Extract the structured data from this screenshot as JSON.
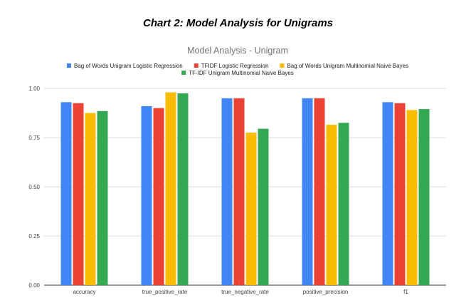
{
  "heading": "Chart 2: Model Analysis for Unigrams",
  "chart_data": {
    "type": "bar",
    "title": "Model Analysis - Unigram",
    "xlabel": "",
    "ylabel": "",
    "categories": [
      "accuracy",
      "true_positive_rate",
      "true_negative_rate",
      "positive_precision",
      "f1"
    ],
    "series": [
      {
        "name": "Bag of Words Unigram Logistic Regression",
        "color": "#4285F4",
        "values": [
          0.93,
          0.91,
          0.95,
          0.95,
          0.93
        ]
      },
      {
        "name": "TFIDF Logistic Regression",
        "color": "#EA4335",
        "values": [
          0.925,
          0.9,
          0.95,
          0.95,
          0.925
        ]
      },
      {
        "name": "Bag of Words Unigram Multinomial Naive Bayes",
        "color": "#FBBC04",
        "values": [
          0.875,
          0.98,
          0.775,
          0.815,
          0.89
        ]
      },
      {
        "name": "TF-IDF Unigram  Multinomial Naive Bayes",
        "color": "#34A853",
        "values": [
          0.885,
          0.975,
          0.795,
          0.825,
          0.895
        ]
      }
    ],
    "ylim": [
      0,
      1
    ],
    "yticks": [
      "0.00",
      "0.25",
      "0.50",
      "0.75",
      "1.00"
    ],
    "grid": true,
    "legend": "top"
  }
}
